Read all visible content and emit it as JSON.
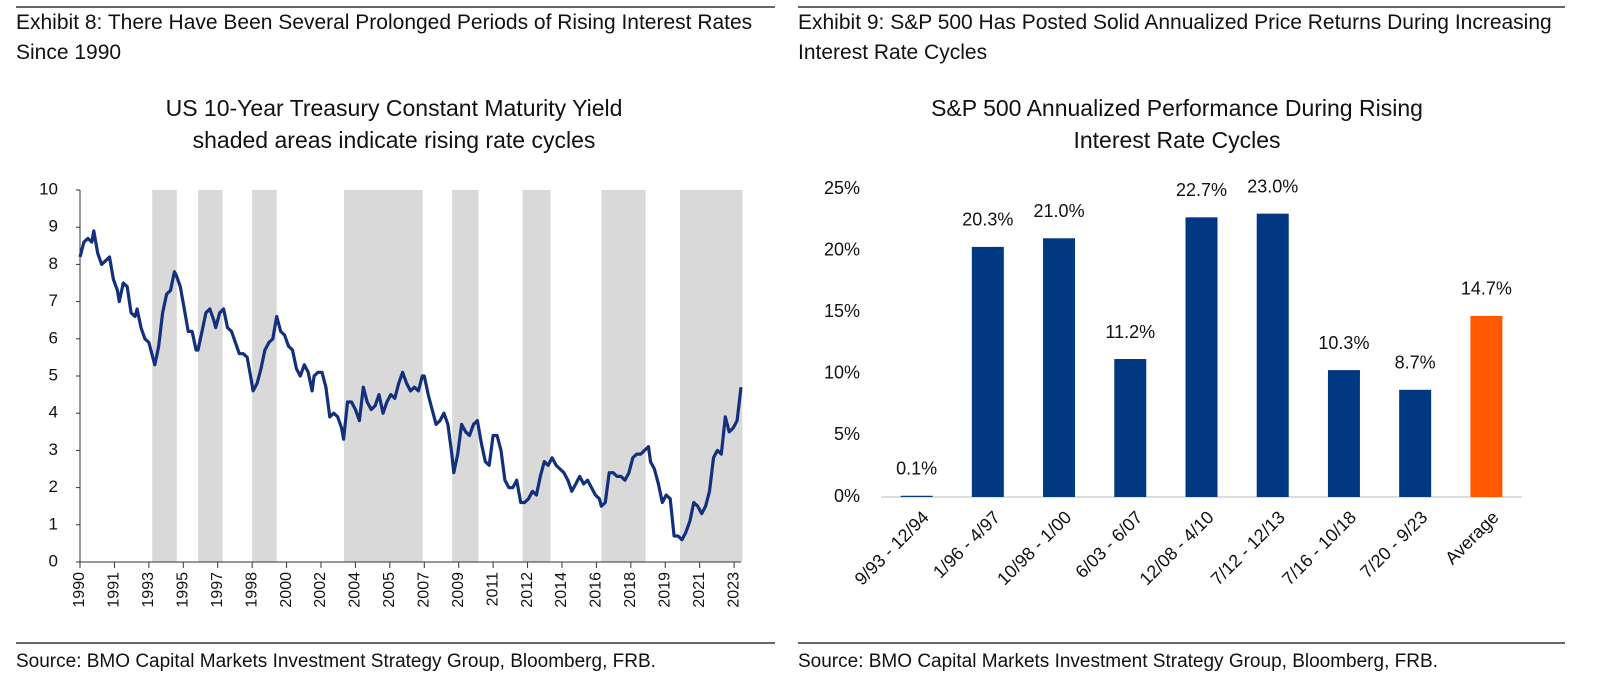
{
  "chart_data": [
    {
      "type": "line",
      "heading": "Exhibit 8: There Have Been Several Prolonged Periods of Rising Interest Rates Since 1990",
      "title": "US 10-Year Treasury Constant Maturity Yield",
      "subtitle": "shaded areas indicate rising rate cycles",
      "source": "Source: BMO Capital Markets Investment Strategy Group, Bloomberg, FRB.",
      "color": "#12307c",
      "shade_color": "#d9d9d9",
      "shaded": [
        [
          1993.67,
          1994.92
        ],
        [
          1996.0,
          1997.25
        ],
        [
          1998.75,
          2000.0
        ],
        [
          2003.42,
          2007.42
        ],
        [
          2008.92,
          2010.25
        ],
        [
          2012.5,
          2013.92
        ],
        [
          2016.5,
          2018.75
        ],
        [
          2020.5,
          2023.67
        ]
      ],
      "xlim": [
        1990,
        2023.6
      ],
      "xticks": [
        1990,
        {
          "value": 1991.75,
          "label": "1991"
        },
        {
          "value": 1993.5,
          "label": "1993"
        },
        {
          "value": 1995.25,
          "label": "1995"
        },
        1997,
        {
          "value": 1998.75,
          "label": "1998"
        },
        {
          "value": 2000.5,
          "label": "2000"
        },
        {
          "value": 2002.25,
          "label": "2002"
        },
        2004,
        {
          "value": 2005.75,
          "label": "2005"
        },
        {
          "value": 2007.5,
          "label": "2007"
        },
        {
          "value": 2009.25,
          "label": "2009"
        },
        2011,
        {
          "value": 2012.75,
          "label": "2012"
        },
        {
          "value": 2014.5,
          "label": "2014"
        },
        {
          "value": 2016.25,
          "label": "2016"
        },
        2018,
        {
          "value": 2019.75,
          "label": "2019"
        },
        {
          "value": 2021.5,
          "label": "2021"
        },
        {
          "value": 2023.25,
          "label": "2023"
        }
      ],
      "ylim": [
        0,
        10
      ],
      "yticks": [
        0,
        1,
        2,
        3,
        4,
        5,
        6,
        7,
        8,
        9,
        10
      ],
      "x": [
        1990.0,
        1990.2,
        1990.4,
        1990.6,
        1990.7,
        1990.9,
        1991.1,
        1991.3,
        1991.5,
        1991.7,
        1991.9,
        1992.0,
        1992.2,
        1992.4,
        1992.6,
        1992.8,
        1992.9,
        1993.1,
        1993.3,
        1993.5,
        1993.7,
        1993.8,
        1994.0,
        1994.2,
        1994.4,
        1994.6,
        1994.8,
        1994.9,
        1995.1,
        1995.3,
        1995.5,
        1995.7,
        1995.9,
        1996.0,
        1996.2,
        1996.4,
        1996.6,
        1996.8,
        1996.9,
        1997.1,
        1997.3,
        1997.5,
        1997.7,
        1997.9,
        1998.1,
        1998.3,
        1998.5,
        1998.7,
        1998.8,
        1999.0,
        1999.2,
        1999.4,
        1999.6,
        1999.8,
        2000.0,
        2000.2,
        2000.4,
        2000.6,
        2000.8,
        2001.0,
        2001.2,
        2001.4,
        2001.6,
        2001.8,
        2001.9,
        2002.1,
        2002.3,
        2002.5,
        2002.7,
        2002.9,
        2003.1,
        2003.3,
        2003.4,
        2003.6,
        2003.8,
        2004.0,
        2004.2,
        2004.4,
        2004.6,
        2004.8,
        2005.0,
        2005.2,
        2005.4,
        2005.6,
        2005.8,
        2006.0,
        2006.2,
        2006.4,
        2006.6,
        2006.8,
        2007.0,
        2007.2,
        2007.4,
        2007.5,
        2007.7,
        2007.9,
        2008.1,
        2008.3,
        2008.5,
        2008.7,
        2008.9,
        2009.0,
        2009.2,
        2009.4,
        2009.6,
        2009.8,
        2010.0,
        2010.2,
        2010.4,
        2010.6,
        2010.8,
        2011.0,
        2011.2,
        2011.4,
        2011.6,
        2011.8,
        2012.0,
        2012.2,
        2012.4,
        2012.6,
        2012.8,
        2013.0,
        2013.2,
        2013.4,
        2013.6,
        2013.8,
        2014.0,
        2014.2,
        2014.4,
        2014.6,
        2014.8,
        2015.0,
        2015.2,
        2015.4,
        2015.6,
        2015.8,
        2016.0,
        2016.2,
        2016.4,
        2016.5,
        2016.7,
        2016.9,
        2017.1,
        2017.3,
        2017.5,
        2017.7,
        2017.9,
        2018.1,
        2018.3,
        2018.5,
        2018.7,
        2018.9,
        2019.0,
        2019.2,
        2019.4,
        2019.6,
        2019.8,
        2020.0,
        2020.2,
        2020.4,
        2020.6,
        2020.8,
        2021.0,
        2021.2,
        2021.4,
        2021.6,
        2021.8,
        2022.0,
        2022.2,
        2022.4,
        2022.6,
        2022.8,
        2023.0,
        2023.2,
        2023.4,
        2023.6
      ],
      "values": [
        8.2,
        8.6,
        8.7,
        8.6,
        8.9,
        8.3,
        8.0,
        8.1,
        8.2,
        7.6,
        7.3,
        7.0,
        7.5,
        7.4,
        6.7,
        6.6,
        6.8,
        6.3,
        6.0,
        5.9,
        5.5,
        5.3,
        5.8,
        6.7,
        7.2,
        7.3,
        7.8,
        7.7,
        7.4,
        6.8,
        6.2,
        6.2,
        5.7,
        5.7,
        6.2,
        6.7,
        6.8,
        6.5,
        6.3,
        6.7,
        6.8,
        6.3,
        6.2,
        5.9,
        5.6,
        5.6,
        5.5,
        4.9,
        4.6,
        4.8,
        5.2,
        5.7,
        5.9,
        6.0,
        6.6,
        6.2,
        6.1,
        5.8,
        5.7,
        5.2,
        5.0,
        5.3,
        5.1,
        4.6,
        5.0,
        5.1,
        5.1,
        4.7,
        3.9,
        4.0,
        3.9,
        3.6,
        3.3,
        4.3,
        4.3,
        4.1,
        3.8,
        4.7,
        4.3,
        4.1,
        4.2,
        4.5,
        4.0,
        4.3,
        4.5,
        4.4,
        4.8,
        5.1,
        4.8,
        4.6,
        4.7,
        4.6,
        5.0,
        5.0,
        4.5,
        4.1,
        3.7,
        3.8,
        4.0,
        3.7,
        2.9,
        2.4,
        2.9,
        3.7,
        3.5,
        3.4,
        3.7,
        3.8,
        3.2,
        2.7,
        2.6,
        3.4,
        3.4,
        3.0,
        2.2,
        2.0,
        2.0,
        2.2,
        1.6,
        1.6,
        1.7,
        1.9,
        1.8,
        2.3,
        2.7,
        2.6,
        2.8,
        2.6,
        2.5,
        2.4,
        2.2,
        1.9,
        2.1,
        2.3,
        2.1,
        2.2,
        2.0,
        1.8,
        1.7,
        1.5,
        1.6,
        2.4,
        2.4,
        2.3,
        2.3,
        2.2,
        2.4,
        2.8,
        2.9,
        2.9,
        3.0,
        3.1,
        2.7,
        2.5,
        2.1,
        1.6,
        1.8,
        1.7,
        0.7,
        0.7,
        0.6,
        0.8,
        1.1,
        1.6,
        1.5,
        1.3,
        1.5,
        1.9,
        2.8,
        3.0,
        2.9,
        3.9,
        3.5,
        3.6,
        3.8,
        4.7
      ]
    },
    {
      "type": "bar",
      "heading": "Exhibit 9: S&P 500 Has Posted Solid Annualized Price Returns During Increasing Interest Rate Cycles",
      "title": "S&P 500 Annualized Performance During Rising Interest Rate Cycles",
      "source": "Source: BMO Capital Markets Investment Strategy Group, Bloomberg, FRB.",
      "categories": [
        "9/93 - 12/94",
        "1/96 - 4/97",
        "10/98 - 1/00",
        "6/03 - 6/07",
        "12/08 - 4/10",
        "7/12 - 12/13",
        "7/16 - 10/18",
        "7/20 - 9/23",
        "Average"
      ],
      "values": [
        0.1,
        20.3,
        21.0,
        11.2,
        22.7,
        23.0,
        10.3,
        8.7,
        14.7
      ],
      "value_labels": [
        "0.1%",
        "20.3%",
        "21.0%",
        "11.2%",
        "22.7%",
        "23.0%",
        "10.3%",
        "8.7%",
        "14.7%"
      ],
      "colors": [
        "#003882",
        "#003882",
        "#003882",
        "#003882",
        "#003882",
        "#003882",
        "#003882",
        "#003882",
        "#ff5a00"
      ],
      "ylim": [
        0,
        25
      ],
      "yticks": [
        {
          "value": 0,
          "label": "0%"
        },
        {
          "value": 5,
          "label": "5%"
        },
        {
          "value": 10,
          "label": "10%"
        },
        {
          "value": 15,
          "label": "15%"
        },
        {
          "value": 20,
          "label": "20%"
        },
        {
          "value": 25,
          "label": "25%"
        }
      ]
    }
  ]
}
